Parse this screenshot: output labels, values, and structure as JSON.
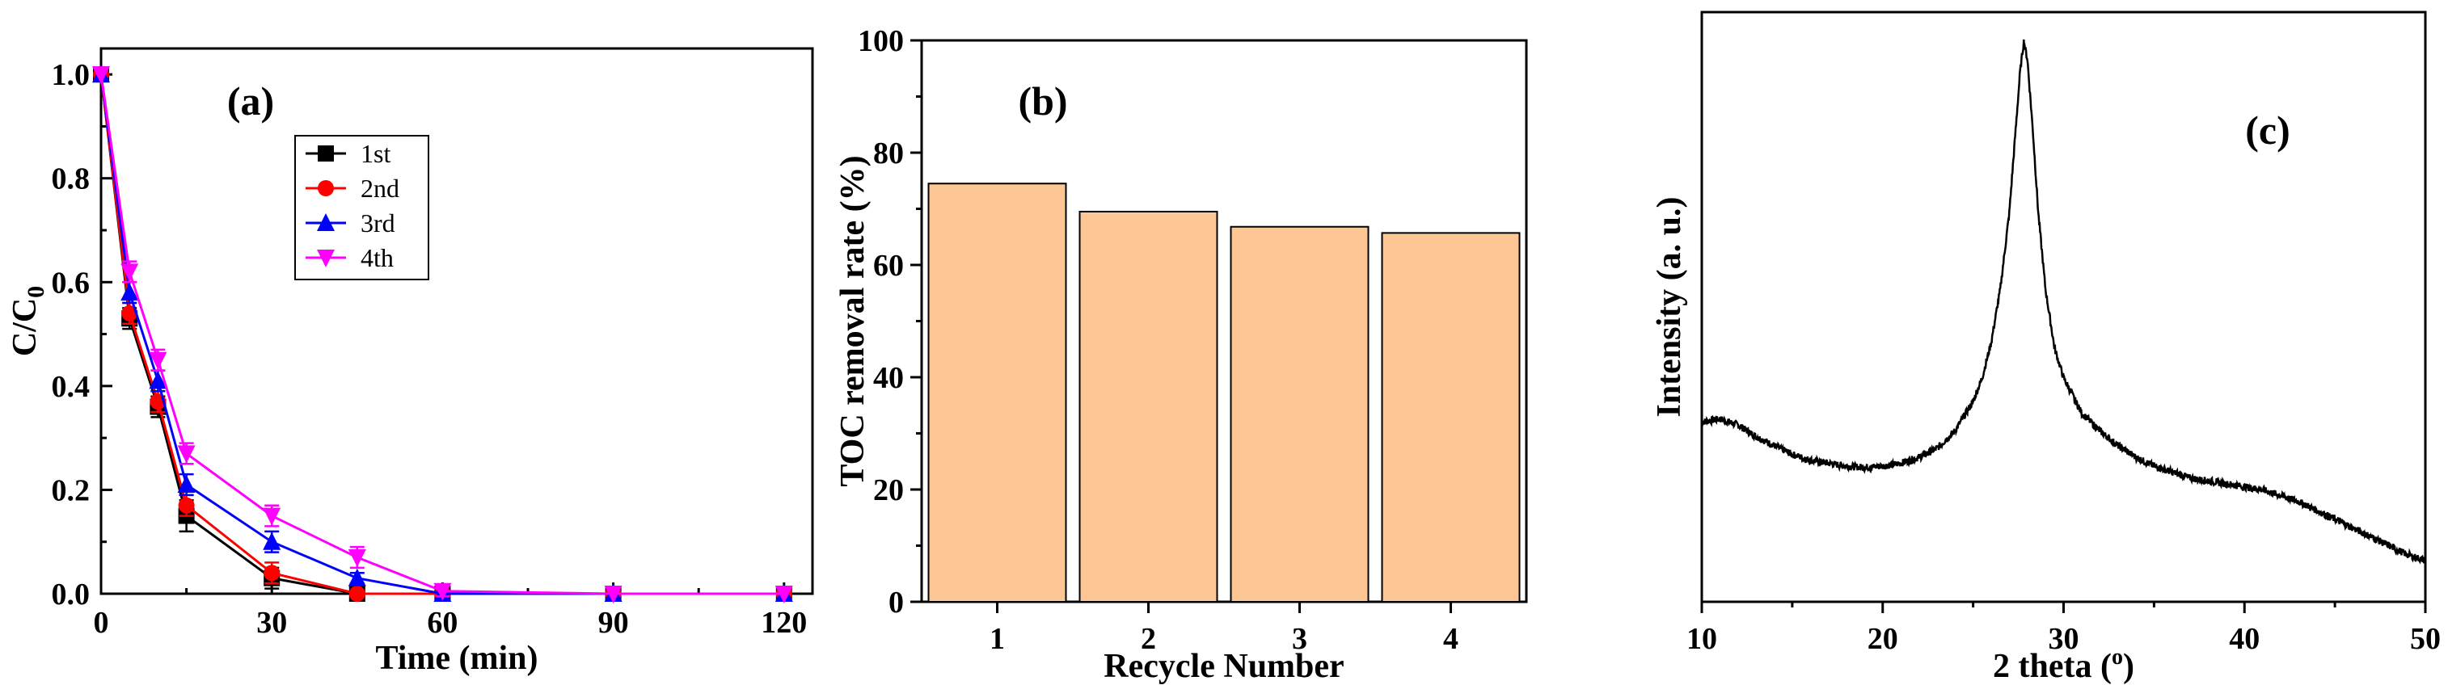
{
  "chart_data": [
    {
      "type": "line",
      "panel_label": "(a)",
      "xlabel": "Time (min)",
      "ylabel_main": "C/C",
      "ylabel_sub": "0",
      "xlim": [
        0,
        125
      ],
      "ylim": [
        0,
        1.05
      ],
      "xticks": [
        0,
        30,
        60,
        90,
        120
      ],
      "yticks": [
        0.0,
        0.2,
        0.4,
        0.6,
        0.8,
        1.0
      ],
      "x": [
        0,
        5,
        10,
        15,
        30,
        45,
        60,
        90,
        120
      ],
      "legend_position": "upper-middle",
      "series": [
        {
          "name": "1st",
          "color": "#000000",
          "marker": "square",
          "values": [
            1.0,
            0.53,
            0.36,
            0.15,
            0.03,
            0.0,
            0.0,
            0.0,
            0.0
          ],
          "errors": [
            0.0,
            0.02,
            0.02,
            0.03,
            0.02,
            0.0,
            0.0,
            0.0,
            0.0
          ]
        },
        {
          "name": "2nd",
          "color": "#ff0000",
          "marker": "circle",
          "values": [
            1.0,
            0.54,
            0.37,
            0.17,
            0.04,
            0.0,
            0.0,
            0.0,
            0.0
          ],
          "errors": [
            0.0,
            0.02,
            0.02,
            0.02,
            0.02,
            0.0,
            0.0,
            0.0,
            0.0
          ]
        },
        {
          "name": "3rd",
          "color": "#0000ff",
          "marker": "triangle-up",
          "values": [
            1.0,
            0.58,
            0.41,
            0.21,
            0.1,
            0.03,
            0.0,
            0.0,
            0.0
          ],
          "errors": [
            0.0,
            0.02,
            0.02,
            0.02,
            0.02,
            0.01,
            0.0,
            0.0,
            0.0
          ]
        },
        {
          "name": "4th",
          "color": "#ff00ff",
          "marker": "triangle-down",
          "values": [
            1.0,
            0.62,
            0.45,
            0.27,
            0.15,
            0.07,
            0.005,
            0.0,
            0.0
          ],
          "errors": [
            0.0,
            0.02,
            0.02,
            0.02,
            0.02,
            0.02,
            0.01,
            0.0,
            0.0
          ]
        }
      ]
    },
    {
      "type": "bar",
      "panel_label": "(b)",
      "xlabel": "Recycle Number",
      "ylabel": "TOC removal rate (%)",
      "categories": [
        "1",
        "2",
        "3",
        "4"
      ],
      "values": [
        74.5,
        69.5,
        66.8,
        65.7
      ],
      "ylim": [
        0,
        100
      ],
      "yticks": [
        0,
        20,
        40,
        60,
        80,
        100
      ],
      "bar_color": "#fcc695"
    },
    {
      "type": "line",
      "panel_label": "(c)",
      "xlabel_main": "2 theta (",
      "xlabel_sup": "o",
      "xlabel_end": ")",
      "ylabel": "Intensity (a. u.)",
      "xlim": [
        10,
        50
      ],
      "xticks": [
        10,
        20,
        30,
        40,
        50
      ],
      "yticks_shown": false,
      "peak_position": 27.8,
      "series": [
        {
          "color": "#000000",
          "x": [
            10,
            11,
            12,
            13,
            14,
            15,
            16,
            17,
            18,
            19,
            20,
            21,
            22,
            23,
            24,
            25,
            25.5,
            26,
            26.5,
            27,
            27.3,
            27.6,
            27.8,
            28.0,
            28.3,
            28.6,
            29,
            29.5,
            30,
            31,
            32,
            33,
            34,
            35,
            36,
            37,
            38,
            39,
            40,
            41,
            42,
            43,
            44,
            45,
            46,
            47,
            48,
            49,
            50
          ],
          "y": [
            0.305,
            0.31,
            0.3,
            0.28,
            0.265,
            0.25,
            0.24,
            0.235,
            0.23,
            0.228,
            0.23,
            0.235,
            0.245,
            0.26,
            0.29,
            0.34,
            0.38,
            0.44,
            0.53,
            0.66,
            0.78,
            0.9,
            0.95,
            0.92,
            0.8,
            0.66,
            0.53,
            0.43,
            0.38,
            0.32,
            0.29,
            0.265,
            0.245,
            0.23,
            0.22,
            0.21,
            0.205,
            0.2,
            0.195,
            0.19,
            0.18,
            0.17,
            0.155,
            0.14,
            0.125,
            0.11,
            0.095,
            0.08,
            0.07
          ]
        }
      ]
    }
  ]
}
